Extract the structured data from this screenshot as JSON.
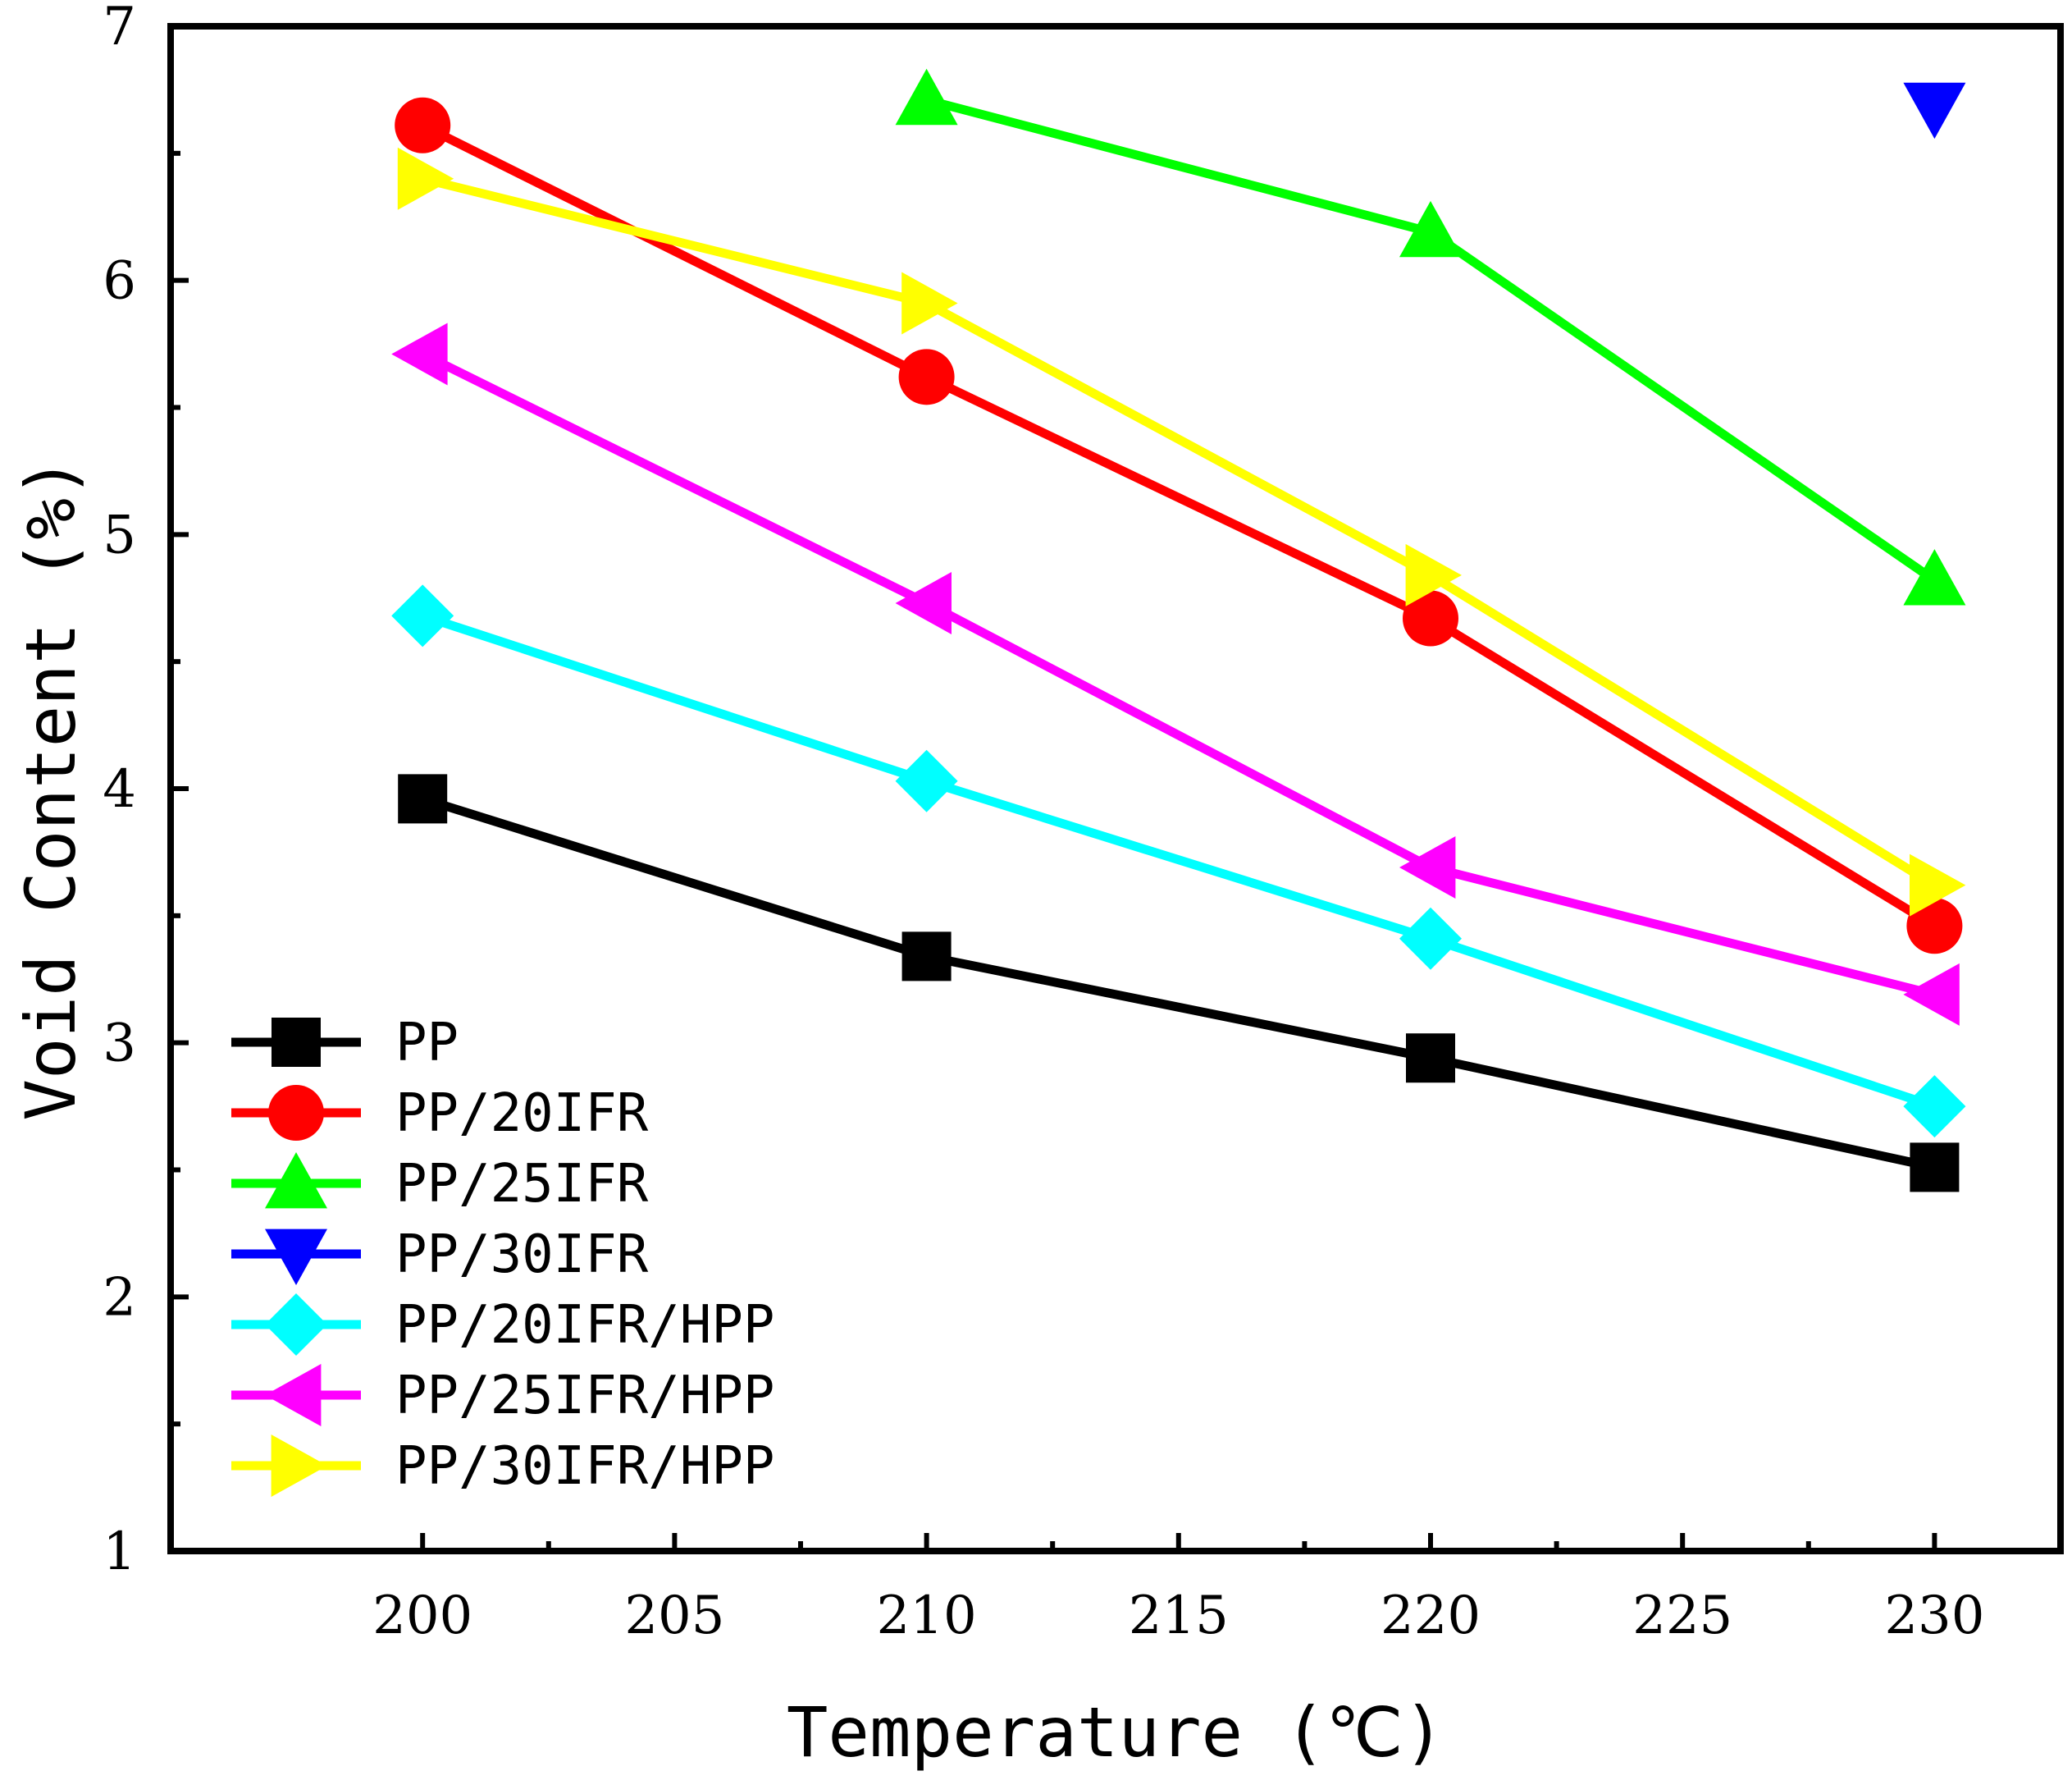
{
  "chart_data": {
    "type": "line",
    "title": "",
    "xlabel": "Temperature (℃)",
    "ylabel": "Void Content (%)",
    "xlim": [
      195,
      232.5
    ],
    "ylim": [
      1,
      7
    ],
    "xticks": [
      200,
      205,
      210,
      215,
      220,
      225,
      230
    ],
    "yticks": [
      1,
      2,
      3,
      4,
      5,
      6,
      7
    ],
    "x": [
      200,
      210,
      220,
      230
    ],
    "grid": false,
    "legend_position": "bottom-left",
    "series": [
      {
        "name": "PP",
        "color": "#000000",
        "marker": "square",
        "values": [
          3.96,
          3.34,
          2.94,
          2.51
        ]
      },
      {
        "name": "PP/20IFR",
        "color": "#ff0000",
        "marker": "circle",
        "values": [
          6.61,
          5.62,
          4.67,
          3.46
        ]
      },
      {
        "name": "PP/25IFR",
        "color": "#00ff00",
        "marker": "triangle-up",
        "values": [
          null,
          6.71,
          6.19,
          4.82
        ]
      },
      {
        "name": "PP/30IFR",
        "color": "#0000ff",
        "marker": "triangle-down",
        "values": [
          null,
          null,
          null,
          6.68
        ]
      },
      {
        "name": "PP/20IFR/HPP",
        "color": "#00ffff",
        "marker": "diamond",
        "values": [
          4.68,
          4.03,
          3.41,
          2.75
        ]
      },
      {
        "name": "PP/25IFR/HPP",
        "color": "#ff00ff",
        "marker": "triangle-left",
        "values": [
          5.71,
          4.73,
          3.69,
          3.19
        ]
      },
      {
        "name": "PP/30IFR/HPP",
        "color": "#ffff00",
        "marker": "triangle-right",
        "values": [
          6.4,
          5.91,
          4.84,
          3.62
        ]
      }
    ]
  }
}
